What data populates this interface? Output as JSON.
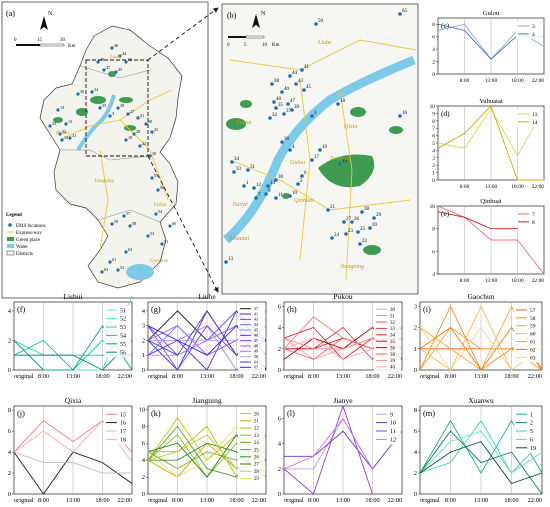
{
  "maps": {
    "a": {
      "panel_label": "(a)",
      "north": "N",
      "scale_ticks": [
        "0",
        "15",
        "30"
      ],
      "scale_unit": "Km",
      "district_labels": [
        "Liuhe",
        "Pukou",
        "Jiangning",
        "Lishui",
        "Gaochun"
      ],
      "legend": {
        "title": "Legend",
        "items": [
          "EMS locations",
          "Express-way",
          "Green place",
          "Water",
          "Districts"
        ]
      },
      "point_labels": [
        "46",
        "44",
        "48",
        "50",
        "47",
        "45",
        "14",
        "36",
        "13",
        "33",
        "32",
        "31",
        "12",
        "34",
        "35",
        "3",
        "38",
        "27",
        "21",
        "20",
        "25",
        "28",
        "10",
        "22",
        "30",
        "55",
        "56",
        "57",
        "59",
        "58",
        "62",
        "61",
        "63",
        "52",
        "53",
        "51",
        "54",
        "60"
      ]
    },
    "b": {
      "panel_label": "(b)",
      "north": "N",
      "scale_ticks": [
        "0",
        "5",
        "10"
      ],
      "scale_unit": "Km",
      "district_labels": [
        "Liuhe",
        "Pukou",
        "Qixia",
        "Xuanwu",
        "Gulou",
        "Qinhuai",
        "Jianye",
        "Yuhuatai",
        "Jiangning"
      ],
      "point_labels": [
        "50",
        "65",
        "38",
        "48",
        "44",
        "41",
        "43",
        "45",
        "40",
        "35",
        "39",
        "32",
        "37",
        "47",
        "18",
        "3",
        "16",
        "36",
        "4",
        "19",
        "17",
        "15",
        "34",
        "33",
        "30",
        "6",
        "2",
        "14",
        "12",
        "7",
        "1",
        "11",
        "10",
        "31",
        "9",
        "21",
        "28",
        "26",
        "25",
        "27",
        "20",
        "22",
        "29",
        "23",
        "24",
        "13"
      ]
    }
  },
  "chart_data": [
    {
      "type": "line",
      "panel": "(c)",
      "title": "Gulou",
      "categories": [
        "original",
        "8:00",
        "13:00",
        "18:00",
        "22:00"
      ],
      "x_tick_labels": [
        "8:00",
        "13:00",
        "18:00",
        "22:00"
      ],
      "ylim": [
        0,
        9
      ],
      "yticks": [
        0,
        2,
        4,
        6,
        8
      ],
      "legend": "top-right",
      "series": [
        {
          "name": "3",
          "color": "#8fa8e6",
          "values": [
            7,
            8,
            2.4,
            7,
            4.4
          ]
        },
        {
          "name": "4",
          "color": "#4a78d6",
          "values": [
            8,
            7,
            2.4,
            6.2,
            6
          ]
        }
      ]
    },
    {
      "type": "line",
      "panel": "(d)",
      "title": "Yuhuatai",
      "categories": [
        "original",
        "8:00",
        "13:00",
        "18:00",
        "22:00"
      ],
      "x_tick_labels": [
        "8:00",
        "13:00",
        "18:00",
        "22:00"
      ],
      "ylim": [
        0,
        10
      ],
      "yticks": [
        0,
        1,
        2,
        3,
        4,
        5,
        6,
        7,
        8,
        9,
        10
      ],
      "legend": "top-right",
      "series": [
        {
          "name": "13",
          "color": "#e8d060",
          "values": [
            5,
            4.3,
            9.6,
            3.3,
            9.6
          ]
        },
        {
          "name": "14",
          "color": "#c9b000",
          "values": [
            4.3,
            6.3,
            10,
            0,
            0
          ]
        }
      ]
    },
    {
      "type": "line",
      "panel": "(e)",
      "title": "Qinhuai",
      "categories": [
        "original",
        "8:00",
        "13:00",
        "18:00",
        "22:00"
      ],
      "x_tick_labels": [
        "8:00",
        "13:00",
        "18:00",
        "22:00"
      ],
      "ylim": [
        4,
        10
      ],
      "yticks": [
        4,
        6,
        8,
        10
      ],
      "legend": "top-right",
      "series": [
        {
          "name": "7",
          "color": "#f07070",
          "values": [
            10,
            9,
            7,
            7,
            4
          ]
        },
        {
          "name": "8",
          "color": "#c02020",
          "values": [
            9.5,
            9,
            8,
            8,
            null
          ]
        }
      ]
    },
    {
      "type": "line",
      "panel": "(f)",
      "title": "Lishui",
      "categories": [
        "original",
        "8:00",
        "13:00",
        "18:00",
        "22:00"
      ],
      "ylim": [
        0,
        4.6
      ],
      "yticks": [
        0,
        2,
        4
      ],
      "legend": "top-right",
      "series": [
        {
          "name": "51",
          "color": "#7ee8d8",
          "values": [
            1,
            1,
            1,
            1,
            1
          ]
        },
        {
          "name": "52",
          "color": "#50dcc8",
          "values": [
            2,
            0,
            0,
            0,
            5
          ]
        },
        {
          "name": "53",
          "color": "#2acfb8",
          "values": [
            2,
            1,
            1,
            1,
            1
          ]
        },
        {
          "name": "54",
          "color": "#14bfa8",
          "values": [
            1,
            2,
            0,
            2,
            1
          ]
        },
        {
          "name": "55",
          "color": "#0aa894",
          "values": [
            2,
            0,
            0,
            3,
            0
          ]
        },
        {
          "name": "56",
          "color": "#008a78",
          "values": [
            1,
            1,
            1,
            0,
            2
          ]
        }
      ]
    },
    {
      "type": "line",
      "panel": "(g)",
      "title": "Liuhe",
      "categories": [
        "original",
        "8:00",
        "13:00",
        "18:00",
        "22:00"
      ],
      "ylim": [
        0,
        4.6
      ],
      "yticks": [
        0,
        1,
        2,
        3,
        4
      ],
      "legend": "right",
      "series": [
        {
          "name": "37",
          "color": "#1a1a1a",
          "values": [
            2,
            4,
            2,
            3,
            0
          ]
        },
        {
          "name": "41",
          "color": "#3030d0",
          "values": [
            2,
            0,
            4,
            1,
            3
          ]
        },
        {
          "name": "43",
          "color": "#5050e0",
          "values": [
            3,
            1,
            2,
            4,
            2
          ]
        },
        {
          "name": "44",
          "color": "#7070f0",
          "values": [
            1,
            3,
            1,
            2,
            4
          ]
        },
        {
          "name": "45",
          "color": "#9090f0",
          "values": [
            2,
            2,
            3,
            0,
            2
          ]
        },
        {
          "name": "46",
          "color": "#6a2ad0",
          "values": [
            1,
            2,
            0,
            4,
            1
          ]
        },
        {
          "name": "47",
          "color": "#8a40e0",
          "values": [
            3,
            0,
            3,
            1,
            3
          ]
        },
        {
          "name": "48",
          "color": "#a060f0",
          "values": [
            2,
            3,
            1,
            2,
            2
          ]
        },
        {
          "name": "49",
          "color": "#b080f0",
          "values": [
            1,
            1,
            2,
            3,
            1
          ]
        },
        {
          "name": "50",
          "color": "#c0a0f8",
          "values": [
            2,
            2,
            2,
            2,
            3
          ]
        },
        {
          "name": "64",
          "color": "#4040a0",
          "values": [
            2,
            1,
            4,
            1,
            2
          ]
        },
        {
          "name": "65",
          "color": "#2020ff",
          "values": [
            3,
            2,
            1,
            3,
            2
          ]
        }
      ]
    },
    {
      "type": "line",
      "panel": "(h)",
      "title": "Pukou",
      "categories": [
        "original",
        "8:00",
        "13:00",
        "18:00",
        "22:00"
      ],
      "ylim": [
        0,
        6.4
      ],
      "yticks": [
        0,
        2,
        4,
        6
      ],
      "legend": "right",
      "series": [
        {
          "name": "30",
          "color": "#f4a0a0",
          "values": [
            3,
            1,
            2,
            4,
            2
          ]
        },
        {
          "name": "31",
          "color": "#f08080",
          "values": [
            2,
            5,
            3,
            2,
            3
          ]
        },
        {
          "name": "32",
          "color": "#e86060",
          "values": [
            1,
            3,
            2,
            3,
            1
          ]
        },
        {
          "name": "33",
          "color": "#e04040",
          "values": [
            2,
            2,
            4,
            1,
            3
          ]
        },
        {
          "name": "34",
          "color": "#d03030",
          "values": [
            3,
            4,
            1,
            3,
            2
          ]
        },
        {
          "name": "35",
          "color": "#c02020",
          "values": [
            2,
            2,
            3,
            2,
            4
          ]
        },
        {
          "name": "36",
          "color": "#b01010",
          "values": [
            1,
            3,
            2,
            4,
            1
          ]
        },
        {
          "name": "38",
          "color": "#ff6060",
          "values": [
            2,
            1,
            3,
            2,
            2
          ]
        },
        {
          "name": "39",
          "color": "#ff8888",
          "values": [
            3,
            2,
            2,
            3,
            3
          ]
        },
        {
          "name": "40",
          "color": "#ffaaaa",
          "values": [
            2,
            3,
            1,
            2,
            2
          ]
        }
      ]
    },
    {
      "type": "line",
      "panel": "(i)",
      "title": "Gaochun",
      "categories": [
        "original",
        "8:00",
        "13:00",
        "18:00",
        "22:00"
      ],
      "ylim": [
        0,
        3.2
      ],
      "yticks": [
        0,
        1,
        2,
        3
      ],
      "legend": "right",
      "series": [
        {
          "name": "57",
          "color": "#ff5a00",
          "values": [
            1,
            1,
            1,
            1,
            1
          ]
        },
        {
          "name": "58",
          "color": "#ff8c1a",
          "values": [
            0,
            3,
            0,
            1,
            0
          ]
        },
        {
          "name": "59",
          "color": "#ffa540",
          "values": [
            2,
            1,
            0,
            3,
            0
          ]
        },
        {
          "name": "60",
          "color": "#ffb860",
          "values": [
            1,
            0,
            3,
            0,
            1
          ]
        },
        {
          "name": "61",
          "color": "#f2a040",
          "values": [
            0,
            2,
            1,
            1,
            2
          ]
        },
        {
          "name": "62",
          "color": "#e87a20",
          "values": [
            1,
            2,
            0,
            2,
            0
          ]
        },
        {
          "name": "63",
          "color": "#ffd090",
          "values": [
            2,
            0,
            2,
            0,
            1
          ]
        }
      ]
    },
    {
      "type": "line",
      "panel": "(j)",
      "title": "Qixia",
      "categories": [
        "original",
        "8:00",
        "13:00",
        "18:00",
        "22:00"
      ],
      "ylim": [
        0,
        8.4
      ],
      "yticks": [
        0,
        2,
        4,
        6,
        8
      ],
      "legend": "top-right",
      "series": [
        {
          "name": "15",
          "color": "#f08080",
          "values": [
            4,
            7,
            5,
            7,
            4
          ]
        },
        {
          "name": "16",
          "color": "#1a1a1a",
          "values": [
            4,
            0,
            4,
            3,
            1
          ]
        },
        {
          "name": "17",
          "color": "#c0c0c0",
          "values": [
            4,
            3,
            3,
            2,
            2
          ]
        },
        {
          "name": "18",
          "color": "#ffb0b0",
          "values": [
            4,
            6,
            4,
            7,
            3
          ]
        }
      ]
    },
    {
      "type": "line",
      "panel": "(k)",
      "title": "Jiangning",
      "categories": [
        "original",
        "8:00",
        "13:00",
        "18:00",
        "22:00"
      ],
      "ylim": [
        0,
        10.4
      ],
      "yticks": [
        0,
        2,
        4,
        6,
        8,
        10
      ],
      "legend": "right",
      "series": [
        {
          "name": "20",
          "color": "#d4c000",
          "values": [
            4,
            9,
            4,
            7,
            2
          ]
        },
        {
          "name": "21",
          "color": "#c8a800",
          "values": [
            4,
            2,
            6,
            3,
            4
          ]
        },
        {
          "name": "22",
          "color": "#a8c000",
          "values": [
            5,
            5,
            8,
            2,
            6
          ]
        },
        {
          "name": "23",
          "color": "#90c020",
          "values": [
            4,
            7,
            2,
            6,
            3
          ]
        },
        {
          "name": "24",
          "color": "#70b030",
          "values": [
            5,
            3,
            5,
            4,
            5
          ]
        },
        {
          "name": "25",
          "color": "#50a040",
          "values": [
            4,
            8,
            3,
            2,
            7
          ]
        },
        {
          "name": "26",
          "color": "#309030",
          "values": [
            4,
            4,
            6,
            5,
            2
          ]
        },
        {
          "name": "27",
          "color": "#208020",
          "values": [
            5,
            6,
            2,
            7,
            4
          ]
        },
        {
          "name": "28",
          "color": "#b0d040",
          "values": [
            4,
            5,
            7,
            3,
            6
          ]
        },
        {
          "name": "29",
          "color": "#e0e060",
          "values": [
            5,
            2,
            4,
            8,
            3
          ]
        }
      ]
    },
    {
      "type": "line",
      "panel": "(l)",
      "title": "Jianye",
      "categories": [
        "original",
        "8:00",
        "13:00",
        "18:00",
        "22:00"
      ],
      "ylim": [
        0,
        7
      ],
      "yticks": [
        0,
        2,
        4,
        6
      ],
      "legend": "top-right",
      "series": [
        {
          "name": "9",
          "color": "#b0a0f8",
          "values": [
            2,
            2,
            6,
            2,
            null
          ]
        },
        {
          "name": "10",
          "color": "#5a3ad8",
          "values": [
            3,
            3,
            5,
            2,
            5
          ]
        },
        {
          "name": "11",
          "color": "#9040d0",
          "values": [
            2,
            0,
            7,
            0,
            null
          ]
        },
        {
          "name": "12",
          "color": "#e070e0",
          "values": [
            2,
            3,
            6,
            2,
            null
          ]
        }
      ]
    },
    {
      "type": "line",
      "panel": "(m)",
      "title": "Xuanwu",
      "categories": [
        "original",
        "8:00",
        "13:00",
        "18:00",
        "22:00"
      ],
      "ylim": [
        0,
        8.4
      ],
      "yticks": [
        0,
        2,
        4,
        6,
        8
      ],
      "legend": "top-right",
      "series": [
        {
          "name": "1",
          "color": "#20b070",
          "values": [
            2,
            7,
            2,
            7,
            2
          ]
        },
        {
          "name": "2",
          "color": "#108050",
          "values": [
            2,
            6,
            3,
            4,
            0
          ]
        },
        {
          "name": "5",
          "color": "#40d0a0",
          "values": [
            2,
            3,
            7,
            2,
            5
          ]
        },
        {
          "name": "6",
          "color": "#60e0b0",
          "values": [
            2,
            5,
            6,
            2,
            4
          ]
        },
        {
          "name": "19",
          "color": "#005030",
          "values": [
            2,
            4,
            5,
            1,
            2
          ]
        }
      ]
    }
  ]
}
